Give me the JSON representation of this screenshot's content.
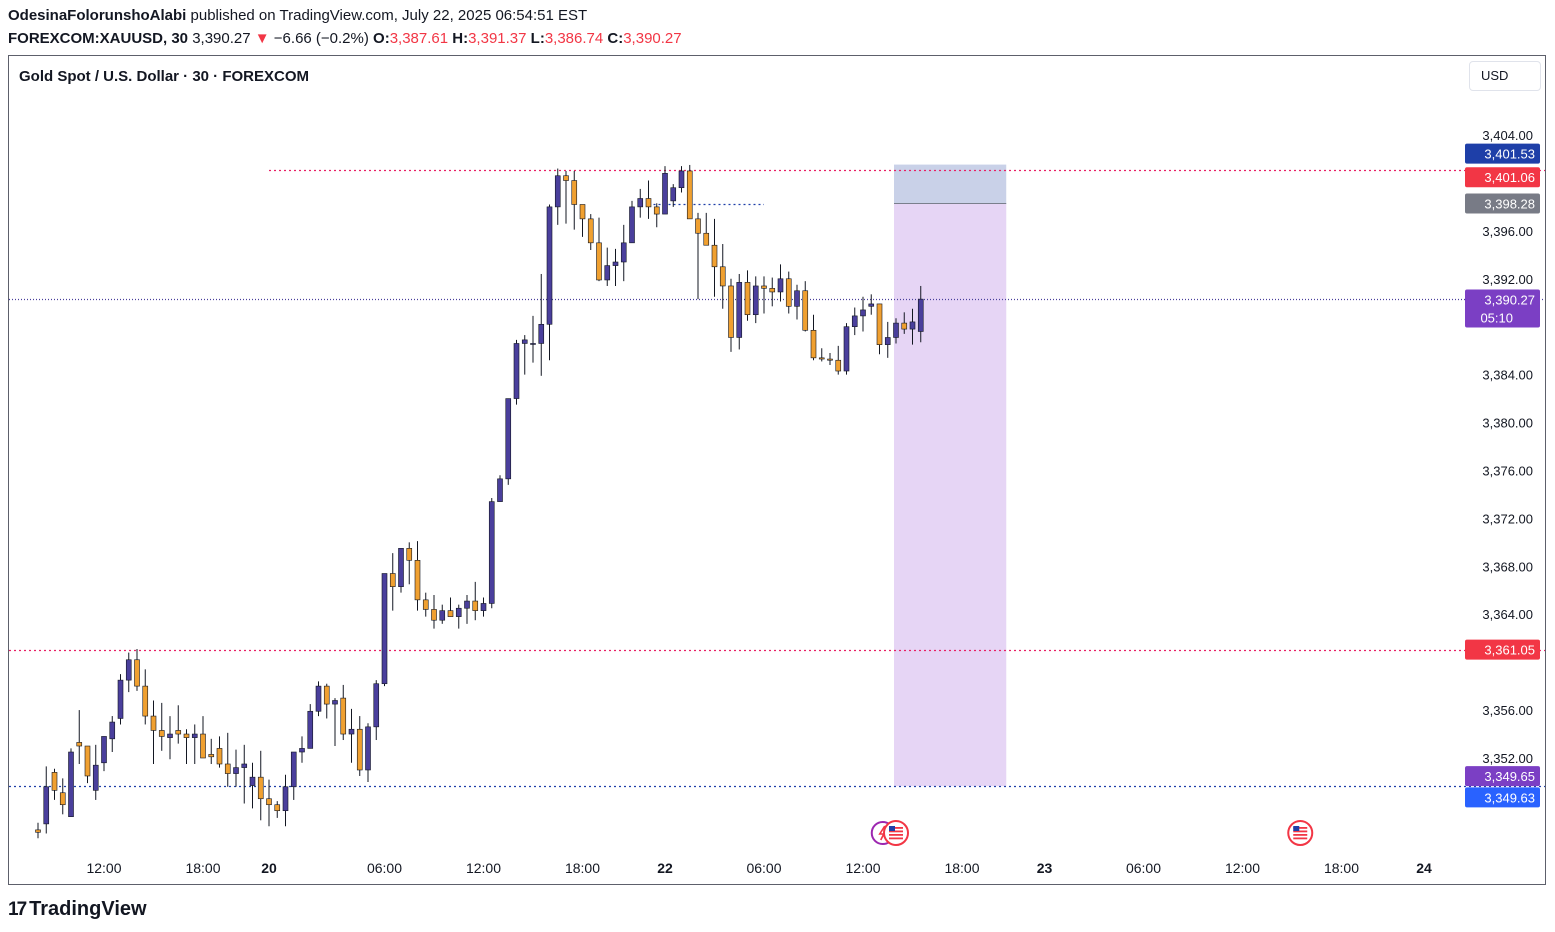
{
  "header": {
    "author": "OdesinaFolorunshoAlabi",
    "published": "published on TradingView.com, July 22, 2025 06:54:51 EST",
    "symbol": "FOREXCOM:XAUUSD, 30",
    "last": "3,390.27",
    "change_arrow": "▼",
    "change": "−6.66 (−0.2%)",
    "o_label": "O:",
    "o": "3,387.61",
    "h_label": "H:",
    "h": "3,391.37",
    "l_label": "L:",
    "l": "3,386.74",
    "c_label": "C:",
    "c": "3,390.27"
  },
  "chart_title": "Gold Spot / U.S. Dollar · 30 · FOREXCOM",
  "currency_button": "USD",
  "brand": "TradingView",
  "colors": {
    "up": "#4a3f9c",
    "down": "#f0a030",
    "accent_red": "#f23645",
    "pink_line": "#e91e63",
    "blue_line": "#1e3fa8",
    "last_price": "#7b3fc4"
  },
  "chart_data": {
    "type": "candlestick",
    "title": "Gold Spot / U.S. Dollar · 30 · FOREXCOM",
    "ylim": [
      3345,
      3405
    ],
    "y_ticks": [
      "3,352.00",
      "3,356.00",
      "3,364.00",
      "3,368.00",
      "3,372.00",
      "3,376.00",
      "3,380.00",
      "3,384.00",
      "3,392.00",
      "3,396.00",
      "3,404.00"
    ],
    "x_ticks": [
      {
        "label": "12:00",
        "bar": 8,
        "bold": false
      },
      {
        "label": "18:00",
        "bar": 20,
        "bold": false
      },
      {
        "label": "20",
        "bar": 28,
        "bold": true
      },
      {
        "label": "06:00",
        "bar": 42,
        "bold": false
      },
      {
        "label": "12:00",
        "bar": 54,
        "bold": false
      },
      {
        "label": "18:00",
        "bar": 66,
        "bold": false
      },
      {
        "label": "22",
        "bar": 76,
        "bold": true
      },
      {
        "label": "06:00",
        "bar": 88,
        "bold": false
      },
      {
        "label": "12:00",
        "bar": 100,
        "bold": false
      },
      {
        "label": "18:00",
        "bar": 112,
        "bold": false
      },
      {
        "label": "23",
        "bar": 122,
        "bold": true
      },
      {
        "label": "06:00",
        "bar": 134,
        "bold": false
      },
      {
        "label": "12:00",
        "bar": 146,
        "bold": false
      },
      {
        "label": "18:00",
        "bar": 158,
        "bold": false
      },
      {
        "label": "24",
        "bar": 168,
        "bold": true
      }
    ],
    "candles": [
      [
        3346,
        3346.6,
        3345.3,
        3345.8
      ],
      [
        3346.5,
        3351.3,
        3345.7,
        3349.6
      ],
      [
        3350.8,
        3351.1,
        3348.5,
        3349.3
      ],
      [
        3349.1,
        3350.3,
        3347.3,
        3348.1
      ],
      [
        3347.1,
        3352.8,
        3347.1,
        3352.5
      ],
      [
        3353.3,
        3356.0,
        3351.5,
        3353.0
      ],
      [
        3353.0,
        3352.5,
        3349.9,
        3350.5
      ],
      [
        3349.3,
        3353.1,
        3348.5,
        3351.4
      ],
      [
        3351.6,
        3353.3,
        3350.9,
        3353.8
      ],
      [
        3353.6,
        3355.5,
        3352.5,
        3355.0
      ],
      [
        3355.3,
        3359.0,
        3354.8,
        3358.5
      ],
      [
        3358.5,
        3360.8,
        3357.5,
        3360.2
      ],
      [
        3360.2,
        3361.1,
        3357.6,
        3358.0
      ],
      [
        3358.0,
        3359.4,
        3354.8,
        3355.5
      ],
      [
        3355.5,
        3356.8,
        3351.5,
        3354.3
      ],
      [
        3354.3,
        3356.6,
        3352.6,
        3353.8
      ],
      [
        3353.7,
        3355.5,
        3351.9,
        3354.0
      ],
      [
        3354.3,
        3356.4,
        3353.2,
        3354.0
      ],
      [
        3354.0,
        3354.4,
        3351.5,
        3353.7
      ],
      [
        3353.7,
        3354.8,
        3351.5,
        3354.0
      ],
      [
        3354.0,
        3355.5,
        3352.0,
        3352.0
      ],
      [
        3352.3,
        3353.6,
        3351.5,
        3352.1
      ],
      [
        3352.8,
        3353.8,
        3351.2,
        3351.5
      ],
      [
        3351.5,
        3354.1,
        3349.6,
        3350.7
      ],
      [
        3350.7,
        3352.7,
        3349.6,
        3351.2
      ],
      [
        3351.2,
        3353.1,
        3348.2,
        3351.5
      ],
      [
        3349.7,
        3351.6,
        3347.8,
        3350.4
      ],
      [
        3350.4,
        3352.6,
        3346.8,
        3348.6
      ],
      [
        3348.6,
        3350.2,
        3346.3,
        3348.1
      ],
      [
        3348.1,
        3348.4,
        3347.0,
        3347.6
      ],
      [
        3347.6,
        3350.6,
        3346.3,
        3349.6
      ],
      [
        3349.6,
        3352.1,
        3348.5,
        3352.5
      ],
      [
        3352.5,
        3353.8,
        3351.6,
        3352.8
      ],
      [
        3352.8,
        3356.5,
        3352.8,
        3355.9
      ],
      [
        3355.9,
        3358.4,
        3355.5,
        3358.0
      ],
      [
        3358.0,
        3358.2,
        3355.3,
        3356.5
      ],
      [
        3356.5,
        3357.0,
        3353.0,
        3356.8
      ],
      [
        3357.0,
        3358.1,
        3353.5,
        3354.0
      ],
      [
        3354.0,
        3356.1,
        3351.6,
        3354.4
      ],
      [
        3354.4,
        3355.5,
        3350.5,
        3351.0
      ],
      [
        3351.0,
        3354.9,
        3350.0,
        3354.6
      ],
      [
        3354.6,
        3358.5,
        3353.5,
        3358.2
      ],
      [
        3358.2,
        3367.4,
        3358.0,
        3367.4
      ],
      [
        3367.4,
        3369.1,
        3364.3,
        3366.3
      ],
      [
        3366.3,
        3369.5,
        3365.8,
        3369.5
      ],
      [
        3369.5,
        3370.0,
        3366.5,
        3368.5
      ],
      [
        3368.5,
        3370.1,
        3364.3,
        3365.2
      ],
      [
        3365.2,
        3365.8,
        3363.8,
        3364.4
      ],
      [
        3364.4,
        3365.6,
        3362.8,
        3363.5
      ],
      [
        3363.5,
        3364.8,
        3363.2,
        3364.3
      ],
      [
        3364.3,
        3365.4,
        3363.9,
        3363.8
      ],
      [
        3363.8,
        3364.8,
        3362.8,
        3364.5
      ],
      [
        3364.5,
        3365.6,
        3363.2,
        3365.1
      ],
      [
        3365.1,
        3366.7,
        3363.5,
        3364.3
      ],
      [
        3364.3,
        3365.4,
        3363.8,
        3364.9
      ],
      [
        3364.9,
        3373.7,
        3364.5,
        3373.4
      ],
      [
        3373.4,
        3375.6,
        3373.8,
        3375.3
      ],
      [
        3375.3,
        3382.0,
        3374.8,
        3382.0
      ],
      [
        3382.0,
        3386.9,
        3381.5,
        3386.6
      ],
      [
        3386.6,
        3387.3,
        3384.0,
        3386.9
      ],
      [
        3386.6,
        3388.9,
        3385.0,
        3386.6
      ],
      [
        3386.6,
        3392.4,
        3383.9,
        3388.2
      ],
      [
        3388.2,
        3398.2,
        3385.2,
        3398.0
      ],
      [
        3398.0,
        3401.2,
        3396.5,
        3400.6
      ],
      [
        3400.6,
        3401.0,
        3396.6,
        3400.2
      ],
      [
        3400.2,
        3401.0,
        3396.1,
        3398.2
      ],
      [
        3398.2,
        3398.0,
        3395.5,
        3397.0
      ],
      [
        3397.0,
        3397.4,
        3394.4,
        3395.0
      ],
      [
        3395.0,
        3397.1,
        3391.8,
        3391.9
      ],
      [
        3391.9,
        3394.6,
        3391.4,
        3393.1
      ],
      [
        3393.1,
        3394.5,
        3391.4,
        3393.4
      ],
      [
        3393.4,
        3396.5,
        3391.8,
        3395.0
      ],
      [
        3395.0,
        3398.5,
        3395.1,
        3398.0
      ],
      [
        3398.0,
        3399.5,
        3397.1,
        3398.7
      ],
      [
        3398.7,
        3400.2,
        3397.0,
        3398.0
      ],
      [
        3398.0,
        3398.3,
        3396.3,
        3397.4
      ],
      [
        3397.4,
        3401.4,
        3397.6,
        3400.8
      ],
      [
        3398.5,
        3399.9,
        3398.0,
        3399.6
      ],
      [
        3399.6,
        3401.4,
        3399.2,
        3401.0
      ],
      [
        3401.0,
        3401.5,
        3397.0,
        3397.0
      ],
      [
        3397.0,
        3397.5,
        3390.3,
        3395.8
      ],
      [
        3395.8,
        3397.5,
        3394.9,
        3394.8
      ],
      [
        3394.8,
        3397.0,
        3390.5,
        3393.0
      ],
      [
        3393.0,
        3394.9,
        3389.5,
        3391.4
      ],
      [
        3391.4,
        3392.0,
        3385.9,
        3387.1
      ],
      [
        3387.1,
        3392.4,
        3386.1,
        3391.7
      ],
      [
        3391.7,
        3392.7,
        3388.5,
        3389.0
      ],
      [
        3389.0,
        3392.2,
        3388.3,
        3391.4
      ],
      [
        3391.4,
        3392.2,
        3389.1,
        3391.2
      ],
      [
        3391.2,
        3392.1,
        3389.7,
        3390.9
      ],
      [
        3390.9,
        3393.2,
        3390.1,
        3392.0
      ],
      [
        3392.0,
        3392.6,
        3389.1,
        3389.7
      ],
      [
        3389.7,
        3391.5,
        3388.6,
        3391.0
      ],
      [
        3391.0,
        3391.8,
        3387.6,
        3387.7
      ],
      [
        3387.7,
        3389.0,
        3385.2,
        3385.4
      ],
      [
        3385.4,
        3386.2,
        3385.1,
        3385.3
      ],
      [
        3385.3,
        3385.8,
        3384.8,
        3385.2
      ],
      [
        3385.2,
        3386.4,
        3384.0,
        3384.3
      ],
      [
        3384.3,
        3388.3,
        3384.0,
        3388.0
      ],
      [
        3388.0,
        3389.6,
        3387.3,
        3388.9
      ],
      [
        3388.9,
        3390.5,
        3387.6,
        3389.4
      ],
      [
        3389.7,
        3390.7,
        3389.0,
        3389.9
      ],
      [
        3389.9,
        3389.4,
        3385.7,
        3386.5
      ],
      [
        3386.5,
        3388.4,
        3385.4,
        3387.1
      ],
      [
        3387.1,
        3388.7,
        3386.6,
        3388.3
      ],
      [
        3388.3,
        3389.2,
        3387.4,
        3387.8
      ],
      [
        3387.8,
        3389.5,
        3386.5,
        3388.4
      ],
      [
        3387.6,
        3391.4,
        3386.7,
        3390.3
      ]
    ],
    "horizontal_lines": [
      {
        "price": 3401.06,
        "style": "dotted",
        "color": "#e91e63",
        "from_bar": 28
      },
      {
        "price": 3361.05,
        "style": "dotted",
        "color": "#e91e63",
        "from_bar": 0
      },
      {
        "price": 3349.65,
        "style": "dotted",
        "color": "#1e3fa8",
        "from_bar": 0
      },
      {
        "price": 3390.27,
        "style": "dotted",
        "color": "#4a3f9c",
        "from_bar": 0
      },
      {
        "price": 3398.28,
        "style": "dotted",
        "color": "#1e3fa8",
        "from_bar": 74,
        "to_bar": 88
      }
    ],
    "position_box": {
      "entry": 3398.28,
      "target": 3349.65,
      "stop": 3401.53,
      "from_bar": 104,
      "to_bar": 117
    },
    "price_labels": [
      {
        "price": 3401.53,
        "text": "3,401.53",
        "color": "#1e3fa8"
      },
      {
        "price": 3401.06,
        "text": "3,401.06",
        "color": "#f23645"
      },
      {
        "price": 3398.28,
        "text": "3,398.28",
        "color": "#787b86"
      },
      {
        "price": 3390.27,
        "text": "3,390.27",
        "sub": "05:10",
        "color": "#7b3fc4"
      },
      {
        "price": 3361.05,
        "text": "3,361.05",
        "color": "#f23645"
      },
      {
        "price": 3349.65,
        "text": "3,349.65",
        "color": "#7b3fc4"
      },
      {
        "price": 3349.63,
        "text": "3,349.63",
        "color": "#2962ff"
      }
    ],
    "event_icons": [
      {
        "bar": 103,
        "name": "earnings-lightning-icon"
      },
      {
        "bar": 104,
        "name": "us-flag-icon"
      },
      {
        "bar": 153,
        "name": "us-flag-icon"
      }
    ]
  }
}
